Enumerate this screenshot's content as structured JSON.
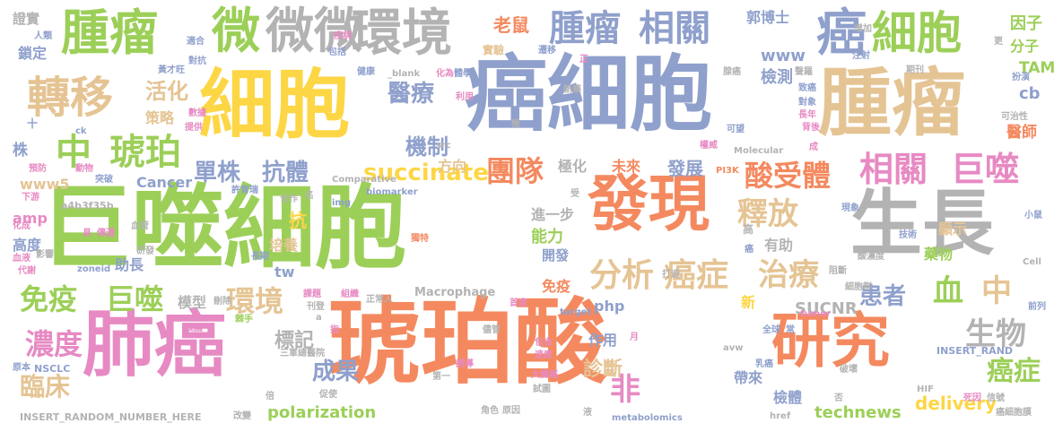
{
  "words": [
    {
      "text": "琥珀酸",
      "color": "#f4895f"
    },
    {
      "text": "巨噬細胞",
      "color": "#9ccf58"
    },
    {
      "text": "癌細胞",
      "color": "#8fa0cc"
    },
    {
      "text": "細胞",
      "color": "#fdd645"
    },
    {
      "text": "腫瘤",
      "color": "#e5c494"
    },
    {
      "text": "生長",
      "color": "#b3b3b3"
    },
    {
      "text": "肺癌",
      "color": "#e78ac3"
    },
    {
      "text": "發現",
      "color": "#f4895f"
    },
    {
      "text": "研究",
      "color": "#f4895f"
    },
    {
      "text": "環境",
      "color": "#b3b3b3"
    },
    {
      "text": "腫瘤",
      "color": "#9ccf58"
    },
    {
      "text": "微微",
      "color": "#b3b3b3"
    },
    {
      "text": "微",
      "color": "#9ccf58"
    },
    {
      "text": "癌",
      "color": "#8fa0cc"
    },
    {
      "text": "細胞",
      "color": "#9ccf58"
    },
    {
      "text": "轉移",
      "color": "#e5c494"
    },
    {
      "text": "腫瘤",
      "color": "#8fa0cc"
    },
    {
      "text": "相關",
      "color": "#8fa0cc"
    },
    {
      "text": "中",
      "color": "#9ccf58"
    },
    {
      "text": "琥珀",
      "color": "#9ccf58"
    },
    {
      "text": "分析",
      "color": "#e5c494"
    },
    {
      "text": "癌症",
      "color": "#e5c494"
    },
    {
      "text": "succinate",
      "color": "#fdd645"
    },
    {
      "text": "團隊",
      "color": "#f4895f"
    },
    {
      "text": "酸受體",
      "color": "#f4895f"
    },
    {
      "text": "相關",
      "color": "#e78ac3"
    },
    {
      "text": "巨噬",
      "color": "#e78ac3"
    },
    {
      "text": "釋放",
      "color": "#e5c494"
    },
    {
      "text": "治療",
      "color": "#e5c494"
    },
    {
      "text": "免疫",
      "color": "#9ccf58"
    },
    {
      "text": "巨噬",
      "color": "#9ccf58"
    },
    {
      "text": "環境",
      "color": "#e5c494"
    },
    {
      "text": "醫療",
      "color": "#8fa0cc"
    },
    {
      "text": "機制",
      "color": "#8fa0cc"
    },
    {
      "text": "活化",
      "color": "#e5c494"
    },
    {
      "text": "單株",
      "color": "#8fa0cc"
    },
    {
      "text": "抗體",
      "color": "#8fa0cc"
    },
    {
      "text": "濃度",
      "color": "#e78ac3"
    },
    {
      "text": "臨床",
      "color": "#e5c494"
    },
    {
      "text": "生物",
      "color": "#b3b3b3"
    },
    {
      "text": "血",
      "color": "#9ccf58"
    },
    {
      "text": "中",
      "color": "#e5c494"
    },
    {
      "text": "患者",
      "color": "#8fa0cc"
    },
    {
      "text": "癌症",
      "color": "#9ccf58"
    },
    {
      "text": "非",
      "color": "#e78ac3"
    },
    {
      "text": "成果",
      "color": "#8fa0cc"
    },
    {
      "text": "診斷",
      "color": "#e5c494"
    },
    {
      "text": "標記",
      "color": "#b3b3b3"
    },
    {
      "text": "technews",
      "color": "#9ccf58"
    },
    {
      "text": "delivery",
      "color": "#fdd645"
    },
    {
      "text": "polarization",
      "color": "#9ccf58"
    },
    {
      "text": "SUCNR",
      "color": "#b3b3b3"
    },
    {
      "text": "老鼠",
      "color": "#f4895f"
    },
    {
      "text": "www",
      "color": "#8fa0cc"
    },
    {
      "text": "檢測",
      "color": "#8fa0cc"
    },
    {
      "text": "TAM",
      "color": "#9ccf58"
    },
    {
      "text": "郭博士",
      "color": "#8fa0cc"
    },
    {
      "text": "因子",
      "color": "#9ccf58"
    },
    {
      "text": "分子",
      "color": "#9ccf58"
    },
    {
      "text": "cb",
      "color": "#8fa0cc"
    },
    {
      "text": "醫師",
      "color": "#f4895f"
    },
    {
      "text": "極化",
      "color": "#b3b3b3"
    },
    {
      "text": "未來",
      "color": "#f4895f"
    },
    {
      "text": "發展",
      "color": "#8fa0cc"
    },
    {
      "text": "方向",
      "color": "#e5c494"
    },
    {
      "text": "www5",
      "color": "#e5c494"
    },
    {
      "text": "Cancer",
      "color": "#8fa0cc"
    },
    {
      "text": "amp",
      "color": "#e78ac3"
    },
    {
      "text": "高度",
      "color": "#8fa0cc"
    },
    {
      "text": "抗",
      "color": "#fdd645"
    },
    {
      "text": "培養",
      "color": "#e5c494"
    },
    {
      "text": "能力",
      "color": "#9ccf58"
    },
    {
      "text": "進一步",
      "color": "#b3b3b3"
    },
    {
      "text": "有助",
      "color": "#b3b3b3"
    },
    {
      "text": "藥物",
      "color": "#9ccf58"
    },
    {
      "text": "tw",
      "color": "#8fa0cc"
    },
    {
      "text": "模型",
      "color": "#b3b3b3"
    },
    {
      "text": "php",
      "color": "#8fa0cc"
    },
    {
      "text": "免疫",
      "color": "#f4895f"
    },
    {
      "text": "作用",
      "color": "#8fa0cc"
    },
    {
      "text": "帶來",
      "color": "#8fa0cc"
    },
    {
      "text": "檢體",
      "color": "#8fa0cc"
    },
    {
      "text": "株",
      "color": "#8fa0cc"
    },
    {
      "text": "鎖定",
      "color": "#8fa0cc"
    },
    {
      "text": "證實",
      "color": "#b3b3b3"
    },
    {
      "text": "策略",
      "color": "#e5c494"
    },
    {
      "text": "助長",
      "color": "#8fa0cc"
    },
    {
      "text": "開發",
      "color": "#8fa0cc"
    },
    {
      "text": "新",
      "color": "#fdd645"
    },
    {
      "text": "顯示",
      "color": "#e5c494"
    },
    {
      "text": "a4b3f35b",
      "color": "#b3b3b3"
    },
    {
      "text": "Macrophage",
      "color": "#b3b3b3"
    },
    {
      "text": "INSERT_RANDOM_NUMBER_HERE",
      "color": "#b3b3b3"
    },
    {
      "text": "INSERT_RAND",
      "color": "#8fa0cc"
    },
    {
      "text": "NSCLC",
      "color": "#8fa0cc"
    },
    {
      "text": "Comparative",
      "color": "#b3b3b3"
    },
    {
      "text": "biomarker",
      "color": "#8fa0cc"
    },
    {
      "text": "zoneid",
      "color": "#8fa0cc"
    },
    {
      "text": "Molecular",
      "color": "#b3b3b3"
    },
    {
      "text": "metabolomics",
      "color": "#8fa0cc"
    },
    {
      "text": "target",
      "color": "#8fa0cc"
    },
    {
      "text": "tumor",
      "color": "#e78ac3"
    },
    {
      "text": "img",
      "color": "#8fa0cc"
    },
    {
      "text": "src",
      "color": "#b3b3b3"
    },
    {
      "text": "ck",
      "color": "#8fa0cc"
    },
    {
      "text": "_blank",
      "color": "#b3b3b3"
    },
    {
      "text": "PI3K",
      "color": "#f4895f"
    },
    {
      "text": "HIF",
      "color": "#b3b3b3"
    },
    {
      "text": "Cell",
      "color": "#b3b3b3"
    },
    {
      "text": "avw",
      "color": "#b3b3b3"
    },
    {
      "text": "href",
      "color": "#b3b3b3"
    },
    {
      "text": "疾病",
      "color": "#e78ac3"
    },
    {
      "text": "實驗",
      "color": "#e5c494"
    },
    {
      "text": "遷移",
      "color": "#8fa0cc"
    },
    {
      "text": "正",
      "color": "#e78ac3"
    },
    {
      "text": "新藥",
      "color": "#b3b3b3"
    },
    {
      "text": "利用",
      "color": "#e78ac3"
    },
    {
      "text": "化為",
      "color": "#e78ac3"
    },
    {
      "text": "體學",
      "color": "#8fa0cc"
    },
    {
      "text": "健康",
      "color": "#8fa0cc"
    },
    {
      "text": "人類",
      "color": "#8fa0cc"
    },
    {
      "text": "適合",
      "color": "#8fa0cc"
    },
    {
      "text": "對抗",
      "color": "#8fa0cc"
    },
    {
      "text": "包括",
      "color": "#8fa0cc"
    },
    {
      "text": "黃才旺",
      "color": "#8fa0cc"
    },
    {
      "text": "數據",
      "color": "#e78ac3"
    },
    {
      "text": "提供",
      "color": "#e78ac3"
    },
    {
      "text": "期刊",
      "color": "#b3b3b3"
    },
    {
      "text": "聲羅",
      "color": "#b3b3b3"
    },
    {
      "text": "致癌",
      "color": "#8fa0cc"
    },
    {
      "text": "對象",
      "color": "#8fa0cc"
    },
    {
      "text": "長年",
      "color": "#e78ac3"
    },
    {
      "text": "背後",
      "color": "#e78ac3"
    },
    {
      "text": "成",
      "color": "#e78ac3"
    },
    {
      "text": "可望",
      "color": "#8fa0cc"
    },
    {
      "text": "權威",
      "color": "#e78ac3"
    },
    {
      "text": "增加",
      "color": "#b3b3b3"
    },
    {
      "text": "注射",
      "color": "#8fa0cc"
    },
    {
      "text": "扮演",
      "color": "#8fa0cc"
    },
    {
      "text": "更",
      "color": "#b3b3b3"
    },
    {
      "text": "可治性",
      "color": "#b3b3b3"
    },
    {
      "text": "預防",
      "color": "#e78ac3"
    },
    {
      "text": "動物",
      "color": "#e78ac3"
    },
    {
      "text": "突破",
      "color": "#8fa0cc"
    },
    {
      "text": "許育瑞",
      "color": "#8fa0cc"
    },
    {
      "text": "下游",
      "color": "#e78ac3"
    },
    {
      "text": "化成",
      "color": "#e78ac3"
    },
    {
      "text": "影響",
      "color": "#b3b3b3"
    },
    {
      "text": "血液",
      "color": "#e78ac3"
    },
    {
      "text": "代謝",
      "color": "#e78ac3"
    },
    {
      "text": "原本",
      "color": "#8fa0cc"
    },
    {
      "text": "具",
      "color": "#e78ac3"
    },
    {
      "text": "傳遞",
      "color": "#e78ac3"
    },
    {
      "text": "血管",
      "color": "#b3b3b3"
    },
    {
      "text": "研發",
      "color": "#b3b3b3"
    },
    {
      "text": "合作",
      "color": "#b3b3b3"
    },
    {
      "text": "名",
      "color": "#b3b3b3"
    },
    {
      "text": "長期",
      "color": "#8fa0cc"
    },
    {
      "text": "課題",
      "color": "#e78ac3"
    },
    {
      "text": "刊登",
      "color": "#b3b3b3"
    },
    {
      "text": "刪除",
      "color": "#b3b3b3"
    },
    {
      "text": "棘手",
      "color": "#9ccf58"
    },
    {
      "text": "我國",
      "color": "#e78ac3"
    },
    {
      "text": "組織",
      "color": "#e78ac3"
    },
    {
      "text": "正常人",
      "color": "#b3b3b3"
    },
    {
      "text": "指",
      "color": "#e78ac3"
    },
    {
      "text": "三軍總醫院",
      "color": "#b3b3b3"
    },
    {
      "text": "儘管",
      "color": "#b3b3b3"
    },
    {
      "text": "誘導",
      "color": "#e78ac3"
    },
    {
      "text": "第一",
      "color": "#b3b3b3"
    },
    {
      "text": "促使",
      "color": "#b3b3b3"
    },
    {
      "text": "大腸癌",
      "color": "#e78ac3"
    },
    {
      "text": "試圖",
      "color": "#b3b3b3"
    },
    {
      "text": "包含",
      "color": "#e78ac3"
    },
    {
      "text": "速度",
      "color": "#e78ac3"
    },
    {
      "text": "改變",
      "color": "#b3b3b3"
    },
    {
      "text": "角色",
      "color": "#b3b3b3"
    },
    {
      "text": "原因",
      "color": "#b3b3b3"
    },
    {
      "text": "液",
      "color": "#b3b3b3"
    },
    {
      "text": "首度",
      "color": "#e78ac3"
    },
    {
      "text": "月",
      "color": "#e78ac3"
    },
    {
      "text": "乳癌",
      "color": "#8fa0cc"
    },
    {
      "text": "全球",
      "color": "#8fa0cc"
    },
    {
      "text": "常",
      "color": "#8fa0cc"
    },
    {
      "text": "死因",
      "color": "#e78ac3"
    },
    {
      "text": "信號",
      "color": "#b3b3b3"
    },
    {
      "text": "癌細胞膜",
      "color": "#b3b3b3"
    },
    {
      "text": "破壞",
      "color": "#b3b3b3"
    },
    {
      "text": "酸濃度",
      "color": "#b3b3b3"
    },
    {
      "text": "細胞群",
      "color": "#b3b3b3"
    },
    {
      "text": "技術",
      "color": "#8fa0cc"
    },
    {
      "text": "阻斷",
      "color": "#b3b3b3"
    },
    {
      "text": "打造",
      "color": "#b3b3b3"
    },
    {
      "text": "癌",
      "color": "#8fa0cc"
    },
    {
      "text": "現象",
      "color": "#8fa0cc"
    },
    {
      "text": "小鼠",
      "color": "#8fa0cc"
    },
    {
      "text": "前列",
      "color": "#8fa0cc"
    },
    {
      "text": "極",
      "color": "#b3b3b3"
    },
    {
      "text": "受",
      "color": "#b3b3b3"
    },
    {
      "text": "高",
      "color": "#b3b3b3"
    },
    {
      "text": "十",
      "color": "#8fa0cc"
    },
    {
      "text": "否",
      "color": "#b3b3b3"
    },
    {
      "text": "倍",
      "color": "#b3b3b3"
    },
    {
      "text": "a",
      "color": "#b3b3b3"
    },
    {
      "text": "獨特",
      "color": "#f4895f"
    },
    {
      "text": "腺癌",
      "color": "#b3b3b3"
    }
  ]
}
